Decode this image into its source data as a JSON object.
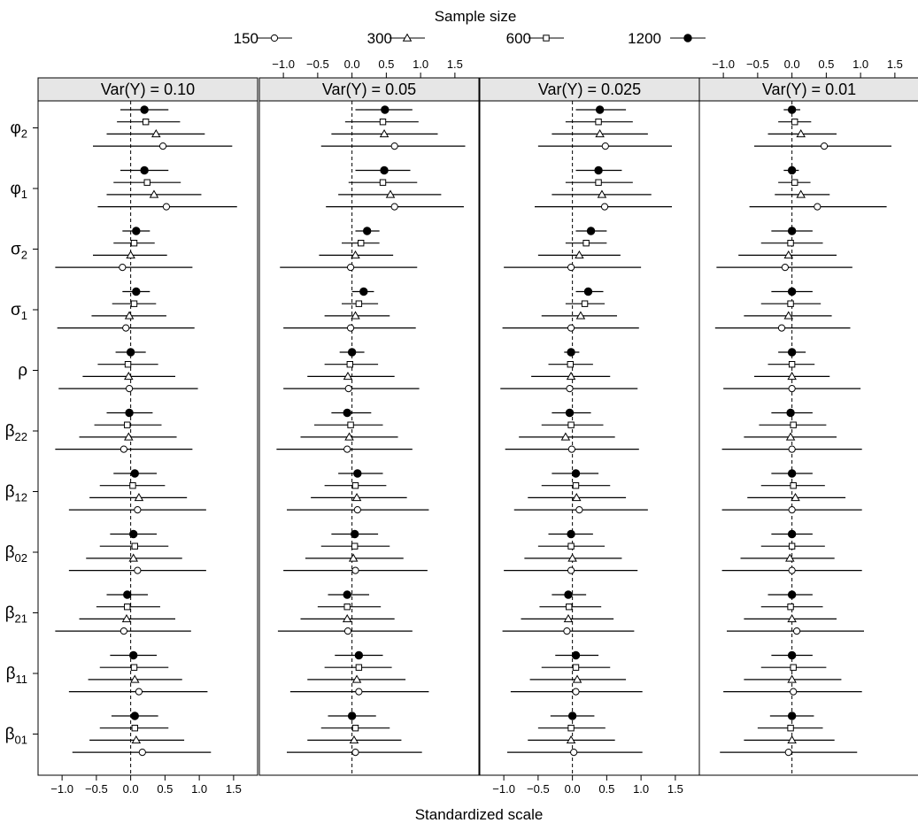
{
  "legend": {
    "title": "Sample size",
    "entries": [
      {
        "label": "150",
        "symbol": "circle-open"
      },
      {
        "label": "300",
        "symbol": "triangle-open"
      },
      {
        "label": "600",
        "symbol": "square-open"
      },
      {
        "label": "1200",
        "symbol": "circle-filled"
      }
    ]
  },
  "chart_data": {
    "type": "scatter",
    "subtype": "dot-and-whisker (trellis)",
    "xlabel": "Standardized scale",
    "xlim": [
      -1.35,
      1.85
    ],
    "x_ticks": [
      -1.0,
      -0.5,
      0.0,
      0.5,
      1.0,
      1.5
    ],
    "x_tick_labels": [
      "−1.0",
      "−0.5",
      "0.0",
      "0.5",
      "1.0",
      "1.5"
    ],
    "reference_line": 0,
    "panels": [
      "Var(Y) = 0.10",
      "Var(Y) = 0.05",
      "Var(Y) = 0.025",
      "Var(Y) = 0.01"
    ],
    "parameters": [
      {
        "base": "φ",
        "sub": "2"
      },
      {
        "base": "φ",
        "sub": "1"
      },
      {
        "base": "σ",
        "sub": "2"
      },
      {
        "base": "σ",
        "sub": "1"
      },
      {
        "base": "ρ",
        "sub": ""
      },
      {
        "base": "β",
        "sub": "22"
      },
      {
        "base": "β",
        "sub": "12"
      },
      {
        "base": "β",
        "sub": "02"
      },
      {
        "base": "β",
        "sub": "21"
      },
      {
        "base": "β",
        "sub": "11"
      },
      {
        "base": "β",
        "sub": "01"
      }
    ],
    "series_order": [
      "1200",
      "600",
      "300",
      "150"
    ],
    "data": [
      [
        [
          [
            -0.15,
            0.2,
            0.55
          ],
          [
            -0.2,
            0.22,
            0.72
          ],
          [
            -0.35,
            0.37,
            1.08
          ],
          [
            -0.55,
            0.47,
            1.48
          ]
        ],
        [
          [
            -0.15,
            0.2,
            0.55
          ],
          [
            -0.25,
            0.24,
            0.73
          ],
          [
            -0.35,
            0.34,
            1.03
          ],
          [
            -0.48,
            0.52,
            1.55
          ]
        ],
        [
          [
            -0.12,
            0.08,
            0.28
          ],
          [
            -0.25,
            0.05,
            0.35
          ],
          [
            -0.55,
            0.0,
            0.53
          ],
          [
            -1.1,
            -0.12,
            0.9
          ]
        ],
        [
          [
            -0.12,
            0.08,
            0.28
          ],
          [
            -0.27,
            0.05,
            0.37
          ],
          [
            -0.57,
            -0.02,
            0.52
          ],
          [
            -1.07,
            -0.07,
            0.93
          ]
        ],
        [
          [
            -0.22,
            0.0,
            0.22
          ],
          [
            -0.48,
            -0.04,
            0.4
          ],
          [
            -0.7,
            -0.03,
            0.65
          ],
          [
            -1.05,
            -0.02,
            0.98
          ]
        ],
        [
          [
            -0.35,
            -0.02,
            0.32
          ],
          [
            -0.53,
            -0.05,
            0.45
          ],
          [
            -0.75,
            -0.03,
            0.67
          ],
          [
            -1.1,
            -0.1,
            0.9
          ]
        ],
        [
          [
            -0.25,
            0.06,
            0.38
          ],
          [
            -0.45,
            0.03,
            0.5
          ],
          [
            -0.6,
            0.12,
            0.82
          ],
          [
            -0.9,
            0.1,
            1.1
          ]
        ],
        [
          [
            -0.3,
            0.04,
            0.38
          ],
          [
            -0.45,
            0.06,
            0.55
          ],
          [
            -0.65,
            0.04,
            0.75
          ],
          [
            -0.9,
            0.1,
            1.1
          ]
        ],
        [
          [
            -0.35,
            -0.05,
            0.25
          ],
          [
            -0.5,
            -0.05,
            0.43
          ],
          [
            -0.75,
            -0.06,
            0.65
          ],
          [
            -1.1,
            -0.1,
            0.88
          ]
        ],
        [
          [
            -0.3,
            0.04,
            0.38
          ],
          [
            -0.45,
            0.05,
            0.55
          ],
          [
            -0.62,
            0.06,
            0.75
          ],
          [
            -0.9,
            0.12,
            1.12
          ]
        ],
        [
          [
            -0.28,
            0.06,
            0.4
          ],
          [
            -0.45,
            0.06,
            0.55
          ],
          [
            -0.6,
            0.08,
            0.78
          ],
          [
            -0.85,
            0.17,
            1.17
          ]
        ]
      ],
      [
        [
          [
            0.05,
            0.48,
            0.88
          ],
          [
            -0.1,
            0.45,
            0.97
          ],
          [
            -0.3,
            0.47,
            1.25
          ],
          [
            -0.45,
            0.62,
            1.65
          ]
        ],
        [
          [
            0.05,
            0.47,
            0.85
          ],
          [
            -0.05,
            0.45,
            0.95
          ],
          [
            -0.2,
            0.56,
            1.3
          ],
          [
            -0.38,
            0.62,
            1.63
          ]
        ],
        [
          [
            0.05,
            0.22,
            0.4
          ],
          [
            -0.15,
            0.13,
            0.4
          ],
          [
            -0.48,
            0.05,
            0.6
          ],
          [
            -1.05,
            -0.02,
            0.95
          ]
        ],
        [
          [
            0.0,
            0.17,
            0.32
          ],
          [
            -0.15,
            0.1,
            0.38
          ],
          [
            -0.4,
            0.05,
            0.55
          ],
          [
            -1.0,
            -0.02,
            0.93
          ]
        ],
        [
          [
            -0.18,
            0.0,
            0.18
          ],
          [
            -0.4,
            -0.03,
            0.38
          ],
          [
            -0.65,
            -0.06,
            0.62
          ],
          [
            -1.0,
            -0.05,
            0.98
          ]
        ],
        [
          [
            -0.3,
            -0.07,
            0.28
          ],
          [
            -0.55,
            -0.02,
            0.45
          ],
          [
            -0.75,
            -0.04,
            0.67
          ],
          [
            -1.1,
            -0.07,
            0.88
          ]
        ],
        [
          [
            -0.2,
            0.08,
            0.45
          ],
          [
            -0.4,
            0.05,
            0.5
          ],
          [
            -0.6,
            0.07,
            0.8
          ],
          [
            -0.95,
            0.08,
            1.12
          ]
        ],
        [
          [
            -0.3,
            0.04,
            0.38
          ],
          [
            -0.45,
            0.04,
            0.55
          ],
          [
            -0.68,
            0.02,
            0.75
          ],
          [
            -1.0,
            0.05,
            1.1
          ]
        ],
        [
          [
            -0.35,
            -0.07,
            0.25
          ],
          [
            -0.5,
            -0.07,
            0.42
          ],
          [
            -0.75,
            -0.07,
            0.62
          ],
          [
            -1.08,
            -0.06,
            0.88
          ]
        ],
        [
          [
            -0.25,
            0.1,
            0.45
          ],
          [
            -0.4,
            0.1,
            0.58
          ],
          [
            -0.65,
            0.07,
            0.78
          ],
          [
            -0.9,
            0.1,
            1.12
          ]
        ],
        [
          [
            -0.35,
            0.0,
            0.35
          ],
          [
            -0.45,
            0.05,
            0.55
          ],
          [
            -0.65,
            0.03,
            0.72
          ],
          [
            -0.95,
            0.05,
            1.02
          ]
        ]
      ],
      [
        [
          [
            0.05,
            0.4,
            0.78
          ],
          [
            -0.1,
            0.38,
            0.88
          ],
          [
            -0.3,
            0.4,
            1.1
          ],
          [
            -0.5,
            0.48,
            1.45
          ]
        ],
        [
          [
            0.05,
            0.38,
            0.72
          ],
          [
            -0.1,
            0.38,
            0.88
          ],
          [
            -0.3,
            0.43,
            1.15
          ],
          [
            -0.55,
            0.47,
            1.45
          ]
        ],
        [
          [
            0.05,
            0.27,
            0.5
          ],
          [
            -0.1,
            0.2,
            0.5
          ],
          [
            -0.5,
            0.1,
            0.7
          ],
          [
            -1.0,
            -0.02,
            1.0
          ]
        ],
        [
          [
            0.05,
            0.23,
            0.45
          ],
          [
            -0.1,
            0.18,
            0.47
          ],
          [
            -0.45,
            0.12,
            0.65
          ],
          [
            -1.02,
            -0.02,
            0.97
          ]
        ],
        [
          [
            -0.12,
            -0.02,
            0.1
          ],
          [
            -0.35,
            -0.03,
            0.3
          ],
          [
            -0.6,
            -0.02,
            0.55
          ],
          [
            -1.05,
            -0.04,
            0.95
          ]
        ],
        [
          [
            -0.3,
            -0.04,
            0.27
          ],
          [
            -0.45,
            -0.02,
            0.45
          ],
          [
            -0.78,
            -0.1,
            0.62
          ],
          [
            -0.98,
            -0.01,
            0.97
          ]
        ],
        [
          [
            -0.3,
            0.05,
            0.38
          ],
          [
            -0.45,
            0.05,
            0.55
          ],
          [
            -0.65,
            0.06,
            0.78
          ],
          [
            -0.85,
            0.1,
            1.1
          ]
        ],
        [
          [
            -0.35,
            -0.02,
            0.3
          ],
          [
            -0.5,
            -0.02,
            0.47
          ],
          [
            -0.7,
            0.0,
            0.72
          ],
          [
            -1.0,
            -0.02,
            0.95
          ]
        ],
        [
          [
            -0.3,
            -0.06,
            0.2
          ],
          [
            -0.48,
            -0.05,
            0.42
          ],
          [
            -0.75,
            -0.06,
            0.6
          ],
          [
            -1.02,
            -0.08,
            0.9
          ]
        ],
        [
          [
            -0.25,
            0.05,
            0.38
          ],
          [
            -0.45,
            0.05,
            0.55
          ],
          [
            -0.62,
            0.07,
            0.78
          ],
          [
            -0.9,
            0.05,
            1.02
          ]
        ],
        [
          [
            -0.32,
            0.0,
            0.32
          ],
          [
            -0.5,
            -0.02,
            0.48
          ],
          [
            -0.65,
            -0.02,
            0.62
          ],
          [
            -0.95,
            0.02,
            1.02
          ]
        ]
      ],
      [
        [
          [
            -0.12,
            0.0,
            0.12
          ],
          [
            -0.2,
            0.04,
            0.28
          ],
          [
            -0.35,
            0.13,
            0.65
          ],
          [
            -0.55,
            0.47,
            1.45
          ]
        ],
        [
          [
            -0.12,
            0.0,
            0.1
          ],
          [
            -0.2,
            0.04,
            0.27
          ],
          [
            -0.25,
            0.13,
            0.55
          ],
          [
            -0.62,
            0.37,
            1.38
          ]
        ],
        [
          [
            -0.3,
            0.0,
            0.3
          ],
          [
            -0.45,
            -0.02,
            0.45
          ],
          [
            -0.78,
            -0.05,
            0.65
          ],
          [
            -1.1,
            -0.1,
            0.88
          ]
        ],
        [
          [
            -0.3,
            0.0,
            0.3
          ],
          [
            -0.45,
            -0.02,
            0.42
          ],
          [
            -0.7,
            -0.05,
            0.58
          ],
          [
            -1.12,
            -0.15,
            0.85
          ]
        ],
        [
          [
            -0.2,
            0.0,
            0.2
          ],
          [
            -0.35,
            0.0,
            0.33
          ],
          [
            -0.55,
            0.0,
            0.55
          ],
          [
            -1.0,
            0.0,
            1.0
          ]
        ],
        [
          [
            -0.3,
            -0.02,
            0.3
          ],
          [
            -0.48,
            0.02,
            0.5
          ],
          [
            -0.7,
            -0.02,
            0.65
          ],
          [
            -1.02,
            0.0,
            1.02
          ]
        ],
        [
          [
            -0.3,
            0.0,
            0.3
          ],
          [
            -0.45,
            0.02,
            0.48
          ],
          [
            -0.65,
            0.05,
            0.78
          ],
          [
            -1.02,
            0.0,
            1.02
          ]
        ],
        [
          [
            -0.3,
            0.0,
            0.3
          ],
          [
            -0.45,
            0.0,
            0.48
          ],
          [
            -0.75,
            -0.03,
            0.62
          ],
          [
            -1.02,
            0.0,
            1.02
          ]
        ],
        [
          [
            -0.35,
            0.0,
            0.3
          ],
          [
            -0.45,
            -0.02,
            0.45
          ],
          [
            -0.7,
            0.0,
            0.65
          ],
          [
            -0.95,
            0.07,
            1.05
          ]
        ],
        [
          [
            -0.3,
            0.0,
            0.3
          ],
          [
            -0.45,
            0.02,
            0.5
          ],
          [
            -0.7,
            0.0,
            0.72
          ],
          [
            -1.0,
            0.02,
            1.02
          ]
        ],
        [
          [
            -0.32,
            0.0,
            0.32
          ],
          [
            -0.5,
            -0.02,
            0.45
          ],
          [
            -0.7,
            0.0,
            0.62
          ],
          [
            -1.05,
            -0.05,
            0.95
          ]
        ]
      ]
    ]
  }
}
